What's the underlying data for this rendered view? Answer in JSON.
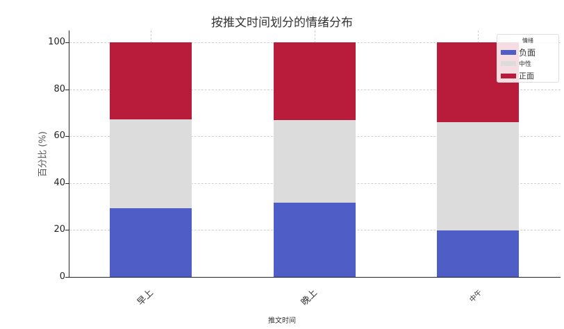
{
  "chart_data": {
    "type": "bar",
    "stacked": true,
    "title": "按推文时间划分的情绪分布",
    "xlabel": "推文时间",
    "ylabel": "百分比 (%)",
    "ylim": [
      0,
      105
    ],
    "yticks": [
      0,
      20,
      40,
      60,
      80,
      100
    ],
    "categories": [
      "早上",
      "晚上",
      "中午"
    ],
    "series": [
      {
        "name": "负面",
        "color": "#4f5ec7",
        "values": [
          29.3,
          31.6,
          19.8
        ]
      },
      {
        "name": "中性",
        "color": "#dddcdd",
        "values": [
          37.9,
          35.3,
          46.1
        ]
      },
      {
        "name": "正面",
        "color": "#b91c3b",
        "values": [
          32.8,
          33.1,
          34.1
        ]
      }
    ],
    "legend": {
      "title": "情绪",
      "position": "upper right",
      "entries": [
        "负面",
        "中性",
        "正面"
      ]
    },
    "grid": true
  },
  "ytick_labels": [
    "0",
    "20",
    "40",
    "60",
    "80",
    "100"
  ]
}
